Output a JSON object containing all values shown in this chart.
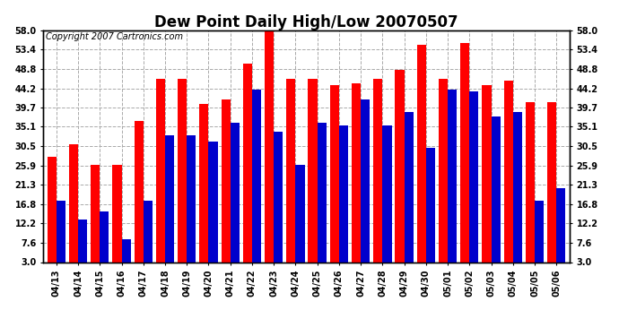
{
  "title": "Dew Point Daily High/Low 20070507",
  "copyright": "Copyright 2007 Cartronics.com",
  "dates": [
    "04/13",
    "04/14",
    "04/15",
    "04/16",
    "04/17",
    "04/18",
    "04/19",
    "04/20",
    "04/21",
    "04/22",
    "04/23",
    "04/24",
    "04/25",
    "04/26",
    "04/27",
    "04/28",
    "04/29",
    "04/30",
    "05/01",
    "05/02",
    "05/03",
    "05/04",
    "05/05",
    "05/06"
  ],
  "highs": [
    28.0,
    31.0,
    26.0,
    26.0,
    36.5,
    46.5,
    46.5,
    40.5,
    41.5,
    50.0,
    58.0,
    46.5,
    46.5,
    45.0,
    45.5,
    46.5,
    48.5,
    54.5,
    46.5,
    55.0,
    45.0,
    46.0,
    41.0,
    41.0
  ],
  "lows": [
    17.5,
    13.0,
    15.0,
    8.5,
    17.5,
    33.0,
    33.0,
    31.5,
    36.0,
    44.0,
    34.0,
    26.0,
    36.0,
    35.5,
    41.5,
    35.5,
    38.5,
    30.0,
    44.0,
    43.5,
    37.5,
    38.5,
    17.5,
    20.5
  ],
  "high_color": "#ff0000",
  "low_color": "#0000cc",
  "bg_color": "#ffffff",
  "grid_color": "#aaaaaa",
  "yticks": [
    3.0,
    7.6,
    12.2,
    16.8,
    21.3,
    25.9,
    30.5,
    35.1,
    39.7,
    44.2,
    48.8,
    53.4,
    58.0
  ],
  "ymin": 3.0,
  "ymax": 58.0,
  "title_fontsize": 12,
  "copyright_fontsize": 7,
  "tick_fontsize": 7,
  "bar_width": 0.42
}
